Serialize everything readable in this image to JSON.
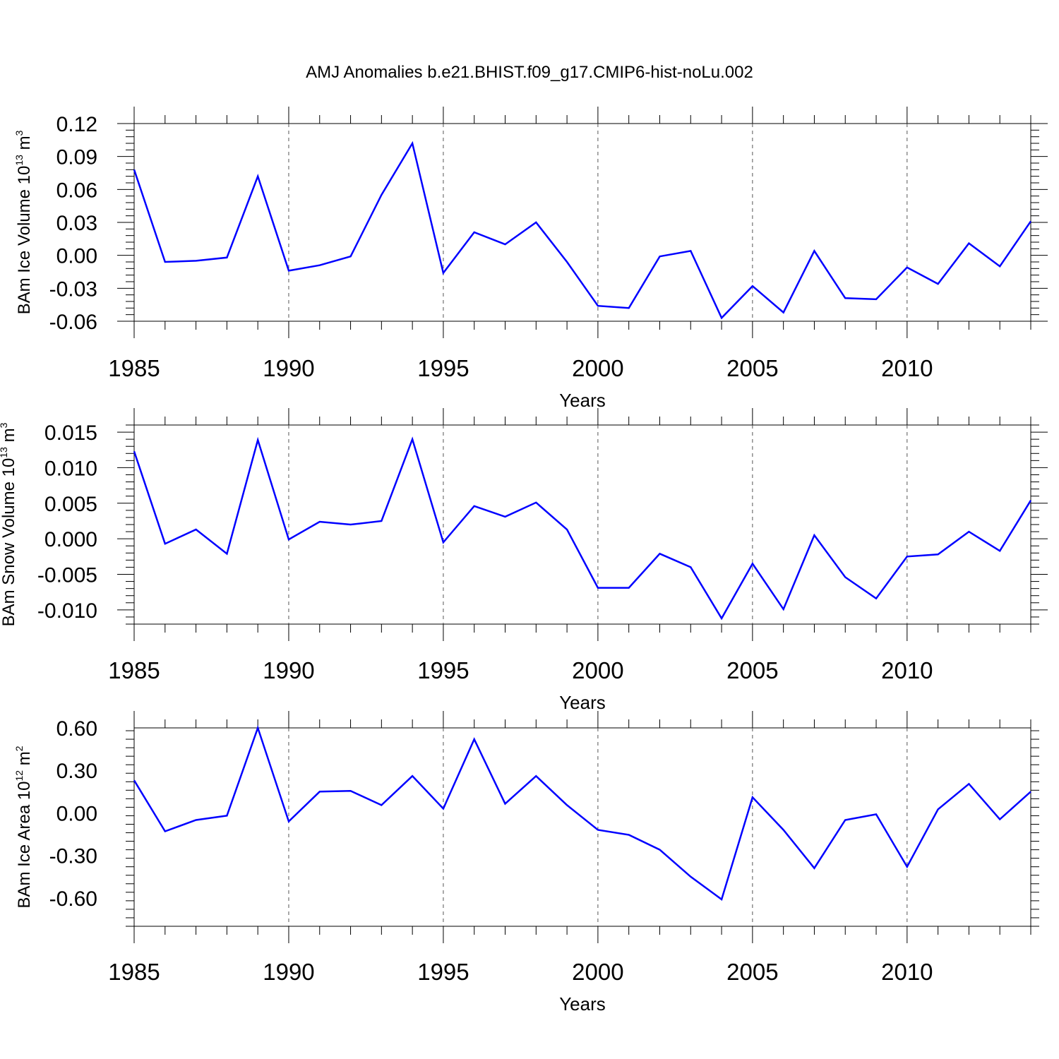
{
  "title": "AMJ Anomalies b.e21.BHIST.f09_g17.CMIP6-hist-noLu.002",
  "chart_data": [
    {
      "type": "line",
      "ylabel": {
        "text": "BAm Ice Volume 10",
        "exp": "13",
        "unit": " m",
        "unit_exp": "3"
      },
      "xlabel": "Years",
      "xlim": [
        1985,
        2014
      ],
      "ylim": [
        -0.06,
        0.12
      ],
      "yticks": [
        0.12,
        0.09,
        0.06,
        0.03,
        0.0,
        -0.03,
        -0.06
      ],
      "ytick_labels": [
        "0.12",
        "0.09",
        "0.06",
        "0.03",
        "0.00",
        "-0.03",
        "-0.06"
      ],
      "xticks": [
        1985,
        1990,
        1995,
        2000,
        2005,
        2010
      ],
      "xtick_labels": [
        "1985",
        "1990",
        "1995",
        "2000",
        "2005",
        "2010"
      ],
      "grid": "dashed vertical at major x ticks",
      "line_color": "#0000ff",
      "x": [
        1985,
        1986,
        1987,
        1988,
        1989,
        1990,
        1991,
        1992,
        1993,
        1994,
        1995,
        1996,
        1997,
        1998,
        1999,
        2000,
        2001,
        2002,
        2003,
        2004,
        2005,
        2006,
        2007,
        2008,
        2009,
        2010,
        2011,
        2012,
        2013,
        2014
      ],
      "y": [
        0.078,
        -0.006,
        -0.005,
        -0.002,
        0.072,
        -0.014,
        -0.009,
        -0.001,
        0.055,
        0.102,
        -0.016,
        0.021,
        0.01,
        0.03,
        -0.006,
        -0.046,
        -0.048,
        -0.001,
        0.004,
        -0.057,
        -0.028,
        -0.052,
        0.004,
        -0.039,
        -0.04,
        -0.011,
        -0.026,
        0.011,
        -0.01,
        0.031
      ]
    },
    {
      "type": "line",
      "ylabel": {
        "text": "BAm Snow Volume 10",
        "exp": "13",
        "unit": " m",
        "unit_exp": "3"
      },
      "xlabel": "Years",
      "xlim": [
        1985,
        2014
      ],
      "ylim": [
        -0.012,
        0.016
      ],
      "yticks": [
        0.015,
        0.01,
        0.005,
        0.0,
        -0.005,
        -0.01
      ],
      "ytick_labels": [
        "0.015",
        "0.010",
        "0.005",
        "0.000",
        "-0.005",
        "-0.010"
      ],
      "xticks": [
        1985,
        1990,
        1995,
        2000,
        2005,
        2010
      ],
      "xtick_labels": [
        "1985",
        "1990",
        "1995",
        "2000",
        "2005",
        "2010"
      ],
      "grid": "dashed vertical at major x ticks",
      "line_color": "#0000ff",
      "x": [
        1985,
        1986,
        1987,
        1988,
        1989,
        1990,
        1991,
        1992,
        1993,
        1994,
        1995,
        1996,
        1997,
        1998,
        1999,
        2000,
        2001,
        2002,
        2003,
        2004,
        2005,
        2006,
        2007,
        2008,
        2009,
        2010,
        2011,
        2012,
        2013,
        2014
      ],
      "y": [
        0.0123,
        -0.0007,
        0.0013,
        -0.0021,
        0.0139,
        -0.0001,
        0.0024,
        0.002,
        0.0025,
        0.014,
        -0.0005,
        0.0046,
        0.0031,
        0.0051,
        0.0013,
        -0.0069,
        -0.0069,
        -0.0021,
        -0.004,
        -0.0112,
        -0.0035,
        -0.0099,
        0.0005,
        -0.0054,
        -0.0084,
        -0.0025,
        -0.0022,
        0.001,
        -0.0017,
        0.0054
      ]
    },
    {
      "type": "line",
      "ylabel": {
        "text": "BAm Ice Area 10",
        "exp": "12",
        "unit": " m",
        "unit_exp": "2"
      },
      "xlabel": "Years",
      "xlim": [
        1985,
        2014
      ],
      "ylim": [
        -0.8,
        0.6
      ],
      "yticks": [
        0.6,
        0.3,
        0.0,
        -0.3,
        -0.6
      ],
      "ytick_labels": [
        "0.60",
        "0.30",
        "0.00",
        "-0.30",
        "-0.60"
      ],
      "xticks": [
        1985,
        1990,
        1995,
        2000,
        2005,
        2010
      ],
      "xtick_labels": [
        "1985",
        "1990",
        "1995",
        "2000",
        "2005",
        "2010"
      ],
      "grid": "dashed vertical at major x ticks",
      "line_color": "#0000ff",
      "x": [
        1985,
        1986,
        1987,
        1988,
        1989,
        1990,
        1991,
        1992,
        1993,
        1994,
        1995,
        1996,
        1997,
        1998,
        1999,
        2000,
        2001,
        2002,
        2003,
        2004,
        2005,
        2006,
        2007,
        2008,
        2009,
        2010,
        2011,
        2012,
        2013,
        2014
      ],
      "y": [
        0.23,
        -0.13,
        -0.05,
        -0.02,
        0.6,
        -0.06,
        0.15,
        0.155,
        0.055,
        0.26,
        0.03,
        0.52,
        0.065,
        0.26,
        0.055,
        -0.12,
        -0.155,
        -0.26,
        -0.45,
        -0.61,
        0.11,
        -0.12,
        -0.39,
        -0.05,
        -0.01,
        -0.38,
        0.025,
        0.205,
        -0.045,
        0.15
      ]
    }
  ]
}
